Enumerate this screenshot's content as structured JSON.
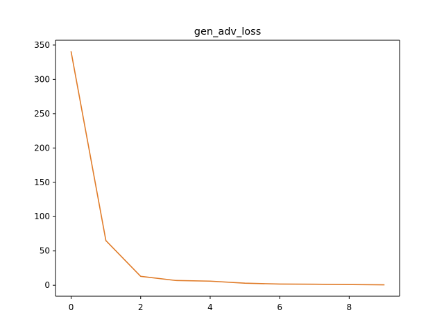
{
  "chart_data": {
    "type": "line",
    "title": "gen_adv_loss",
    "xlabel": "",
    "ylabel": "",
    "x": [
      0,
      1,
      2,
      3,
      4,
      5,
      6,
      7,
      8,
      9
    ],
    "series": [
      {
        "values": [
          340,
          65,
          13,
          7,
          6,
          3,
          1.8,
          1.5,
          1.0,
          0.6
        ],
        "color": "#e07b28"
      }
    ],
    "xlim": [
      -0.45,
      9.45
    ],
    "ylim": [
      -16,
      357
    ],
    "xticks": [
      0,
      2,
      4,
      6,
      8
    ],
    "yticks": [
      0,
      50,
      100,
      150,
      200,
      250,
      300,
      350
    ],
    "grid": false,
    "legend": "none"
  }
}
